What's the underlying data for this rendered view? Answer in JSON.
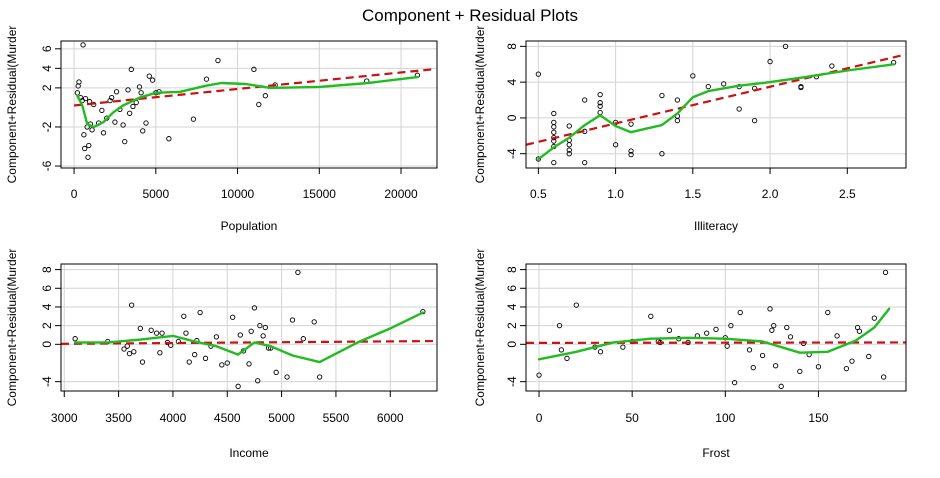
{
  "title": "Component + Residual Plots",
  "colors": {
    "points": "#000000",
    "dashed_line": "#cc1111",
    "smooth_line": "#22bb22",
    "grid": "#d3d3d3",
    "frame": "#000000"
  },
  "chart_data": [
    {
      "type": "scatter",
      "xlabel": "Population",
      "ylabel": "Component+Residual(Murder",
      "xlim": [
        -800,
        22200
      ],
      "ylim": [
        -6.2,
        6.8
      ],
      "xticks": [
        0,
        5000,
        10000,
        15000,
        20000
      ],
      "xtick_labels": [
        "0",
        "5000",
        "10000",
        "15000",
        "20000"
      ],
      "yticks": [
        -6,
        -2,
        2,
        4,
        6
      ],
      "ytick_labels": [
        "-6",
        "-2",
        "2",
        "4",
        "6"
      ],
      "points": [
        [
          200,
          1.5
        ],
        [
          250,
          2.2
        ],
        [
          300,
          2.6
        ],
        [
          400,
          1.0
        ],
        [
          500,
          0.7
        ],
        [
          550,
          6.4
        ],
        [
          600,
          -2.8
        ],
        [
          650,
          -4.2
        ],
        [
          700,
          0.9
        ],
        [
          800,
          -2.0
        ],
        [
          850,
          -5.1
        ],
        [
          900,
          -3.9
        ],
        [
          950,
          0.6
        ],
        [
          1000,
          -1.7
        ],
        [
          1100,
          -2.3
        ],
        [
          1200,
          0.3
        ],
        [
          1500,
          -1.6
        ],
        [
          1700,
          -0.3
        ],
        [
          1800,
          -2.6
        ],
        [
          2000,
          -1.1
        ],
        [
          2200,
          0.7
        ],
        [
          2300,
          1.0
        ],
        [
          2500,
          -1.5
        ],
        [
          2600,
          1.6
        ],
        [
          2800,
          -0.2
        ],
        [
          3000,
          -1.8
        ],
        [
          3100,
          -3.5
        ],
        [
          3300,
          1.8
        ],
        [
          3400,
          -0.6
        ],
        [
          3500,
          3.9
        ],
        [
          3600,
          0.1
        ],
        [
          3800,
          0.5
        ],
        [
          4000,
          2.1
        ],
        [
          4100,
          1.5
        ],
        [
          4200,
          -2.4
        ],
        [
          4400,
          -1.6
        ],
        [
          4600,
          3.2
        ],
        [
          4800,
          2.8
        ],
        [
          5000,
          1.5
        ],
        [
          5200,
          1.6
        ],
        [
          5800,
          -3.2
        ],
        [
          7300,
          -1.2
        ],
        [
          8100,
          2.9
        ],
        [
          8800,
          4.8
        ],
        [
          11000,
          3.9
        ],
        [
          11300,
          0.3
        ],
        [
          11700,
          1.2
        ],
        [
          12300,
          2.3
        ],
        [
          17900,
          2.7
        ],
        [
          21000,
          3.3
        ]
      ],
      "dashed_line": [
        [
          0,
          0.2
        ],
        [
          21900,
          3.9
        ]
      ],
      "smooth_line": [
        [
          200,
          1.2
        ],
        [
          500,
          0.2
        ],
        [
          800,
          -1.7
        ],
        [
          1200,
          -2.0
        ],
        [
          1800,
          -1.5
        ],
        [
          2400,
          -0.5
        ],
        [
          3000,
          0.2
        ],
        [
          4000,
          1.0
        ],
        [
          5000,
          1.5
        ],
        [
          6500,
          1.6
        ],
        [
          8000,
          2.2
        ],
        [
          9000,
          2.5
        ],
        [
          10500,
          2.4
        ],
        [
          12000,
          2.0
        ],
        [
          15000,
          2.1
        ],
        [
          18000,
          2.5
        ],
        [
          21000,
          3.1
        ]
      ]
    },
    {
      "type": "scatter",
      "xlabel": "Illiteracy",
      "ylabel": "Component+Residual(Murder",
      "xlim": [
        0.42,
        2.88
      ],
      "ylim": [
        -5.6,
        8.6
      ],
      "xticks": [
        0.5,
        1.0,
        1.5,
        2.0,
        2.5
      ],
      "xtick_labels": [
        "0.5",
        "1.0",
        "1.5",
        "2.0",
        "2.5"
      ],
      "yticks": [
        -4,
        0,
        4,
        8
      ],
      "ytick_labels": [
        "-4",
        "0",
        "4",
        "8"
      ],
      "points": [
        [
          0.5,
          4.9
        ],
        [
          0.5,
          -4.6
        ],
        [
          0.6,
          0.5
        ],
        [
          0.6,
          -0.5
        ],
        [
          0.6,
          -1.0
        ],
        [
          0.6,
          -1.6
        ],
        [
          0.6,
          -2.2
        ],
        [
          0.6,
          -2.6
        ],
        [
          0.6,
          -3.2
        ],
        [
          0.6,
          -5.0
        ],
        [
          0.7,
          -2.5
        ],
        [
          0.7,
          -3.0
        ],
        [
          0.7,
          -3.6
        ],
        [
          0.7,
          -4.0
        ],
        [
          0.7,
          -0.9
        ],
        [
          0.8,
          -1.5
        ],
        [
          0.8,
          -5.0
        ],
        [
          0.8,
          2.0
        ],
        [
          0.9,
          1.7
        ],
        [
          0.9,
          1.3
        ],
        [
          0.9,
          2.6
        ],
        [
          0.9,
          0.6
        ],
        [
          1.0,
          -0.5
        ],
        [
          1.0,
          -3.0
        ],
        [
          1.1,
          -0.7
        ],
        [
          1.1,
          -3.7
        ],
        [
          1.1,
          -4.1
        ],
        [
          1.3,
          2.5
        ],
        [
          1.3,
          -4.0
        ],
        [
          1.4,
          2.0
        ],
        [
          1.4,
          0.2
        ],
        [
          1.4,
          -0.3
        ],
        [
          1.5,
          4.7
        ],
        [
          1.6,
          3.5
        ],
        [
          1.7,
          3.8
        ],
        [
          1.8,
          1.0
        ],
        [
          1.8,
          3.5
        ],
        [
          1.9,
          -0.3
        ],
        [
          1.9,
          3.3
        ],
        [
          2.0,
          6.3
        ],
        [
          2.1,
          8.0
        ],
        [
          2.2,
          3.4
        ],
        [
          2.2,
          3.5
        ],
        [
          2.3,
          4.6
        ],
        [
          2.4,
          5.8
        ],
        [
          2.8,
          6.2
        ]
      ],
      "dashed_line": [
        [
          0.42,
          -3.0
        ],
        [
          2.88,
          7.1
        ]
      ],
      "smooth_line": [
        [
          0.5,
          -4.6
        ],
        [
          0.6,
          -3.3
        ],
        [
          0.7,
          -2.2
        ],
        [
          0.8,
          -0.8
        ],
        [
          0.9,
          0.3
        ],
        [
          1.0,
          -0.9
        ],
        [
          1.1,
          -1.6
        ],
        [
          1.2,
          -1.2
        ],
        [
          1.3,
          -0.8
        ],
        [
          1.4,
          0.5
        ],
        [
          1.5,
          2.3
        ],
        [
          1.6,
          3.0
        ],
        [
          1.8,
          3.6
        ],
        [
          2.0,
          4.0
        ],
        [
          2.2,
          4.5
        ],
        [
          2.5,
          5.3
        ],
        [
          2.8,
          6.0
        ]
      ]
    },
    {
      "type": "scatter",
      "xlabel": "Income",
      "ylabel": "Component+Residual(Murder",
      "xlim": [
        2970,
        6430
      ],
      "ylim": [
        -5.0,
        8.6
      ],
      "xticks": [
        3000,
        3500,
        4000,
        4500,
        5000,
        5500,
        6000
      ],
      "xtick_labels": [
        "3000",
        "3500",
        "4000",
        "4500",
        "5000",
        "5500",
        "6000"
      ],
      "yticks": [
        -4,
        0,
        2,
        4,
        6,
        8
      ],
      "ytick_labels": [
        "-4",
        "0",
        "2",
        "4",
        "6",
        "8"
      ],
      "points": [
        [
          3100,
          0.6
        ],
        [
          3400,
          0.3
        ],
        [
          3550,
          -0.5
        ],
        [
          3580,
          -0.2
        ],
        [
          3600,
          -1.0
        ],
        [
          3620,
          4.2
        ],
        [
          3640,
          -0.8
        ],
        [
          3700,
          1.7
        ],
        [
          3720,
          -1.9
        ],
        [
          3800,
          1.5
        ],
        [
          3850,
          1.2
        ],
        [
          3880,
          -0.9
        ],
        [
          3900,
          1.2
        ],
        [
          3950,
          0.2
        ],
        [
          3980,
          -0.1
        ],
        [
          4050,
          0.3
        ],
        [
          4100,
          3.0
        ],
        [
          4120,
          1.2
        ],
        [
          4150,
          -1.9
        ],
        [
          4200,
          -1.1
        ],
        [
          4220,
          0.4
        ],
        [
          4250,
          3.4
        ],
        [
          4300,
          -1.5
        ],
        [
          4350,
          -0.2
        ],
        [
          4400,
          0.8
        ],
        [
          4450,
          -2.2
        ],
        [
          4500,
          -2.0
        ],
        [
          4550,
          2.9
        ],
        [
          4600,
          -4.5
        ],
        [
          4620,
          1.0
        ],
        [
          4650,
          -0.7
        ],
        [
          4700,
          -2.1
        ],
        [
          4720,
          1.4
        ],
        [
          4750,
          3.9
        ],
        [
          4780,
          -3.9
        ],
        [
          4800,
          2.0
        ],
        [
          4830,
          0.9
        ],
        [
          4850,
          1.8
        ],
        [
          4880,
          -0.4
        ],
        [
          4900,
          -0.4
        ],
        [
          4950,
          -3.0
        ],
        [
          5050,
          -3.5
        ],
        [
          5100,
          2.6
        ],
        [
          5150,
          7.7
        ],
        [
          5200,
          0.6
        ],
        [
          5300,
          2.4
        ],
        [
          5350,
          -3.5
        ],
        [
          6300,
          3.5
        ]
      ],
      "dashed_line": [
        [
          2970,
          0.05
        ],
        [
          6430,
          0.35
        ]
      ],
      "smooth_line": [
        [
          3100,
          0.2
        ],
        [
          3400,
          0.2
        ],
        [
          3700,
          0.5
        ],
        [
          4000,
          0.9
        ],
        [
          4200,
          0.3
        ],
        [
          4400,
          -0.2
        ],
        [
          4600,
          -1.1
        ],
        [
          4750,
          0.2
        ],
        [
          4900,
          -0.2
        ],
        [
          5100,
          -1.2
        ],
        [
          5350,
          -1.9
        ],
        [
          5700,
          0.2
        ],
        [
          6000,
          1.7
        ],
        [
          6300,
          3.4
        ]
      ]
    },
    {
      "type": "scatter",
      "xlabel": "Frost",
      "ylabel": "Component+Residual(Murder",
      "xlim": [
        -7,
        197
      ],
      "ylim": [
        -5.0,
        8.6
      ],
      "xticks": [
        0,
        50,
        100,
        150
      ],
      "xtick_labels": [
        "0",
        "50",
        "100",
        "150"
      ],
      "yticks": [
        -4,
        0,
        2,
        4,
        6,
        8
      ],
      "ytick_labels": [
        "-4",
        "0",
        "2",
        "4",
        "6",
        "8"
      ],
      "points": [
        [
          0,
          -3.3
        ],
        [
          11,
          2.0
        ],
        [
          12,
          -0.6
        ],
        [
          15,
          -1.5
        ],
        [
          20,
          4.2
        ],
        [
          30,
          -0.3
        ],
        [
          33,
          -0.8
        ],
        [
          45,
          -0.3
        ],
        [
          50,
          0.3
        ],
        [
          60,
          3.0
        ],
        [
          64,
          0.3
        ],
        [
          65,
          0.2
        ],
        [
          70,
          1.5
        ],
        [
          75,
          0.6
        ],
        [
          80,
          0.2
        ],
        [
          85,
          0.9
        ],
        [
          90,
          1.2
        ],
        [
          95,
          1.6
        ],
        [
          100,
          0.7
        ],
        [
          101,
          -0.2
        ],
        [
          103,
          2.0
        ],
        [
          105,
          -4.1
        ],
        [
          108,
          3.4
        ],
        [
          113,
          -0.6
        ],
        [
          115,
          -2.5
        ],
        [
          120,
          -1.2
        ],
        [
          124,
          3.8
        ],
        [
          125,
          1.5
        ],
        [
          126,
          2.0
        ],
        [
          127,
          -2.3
        ],
        [
          130,
          -4.5
        ],
        [
          133,
          1.8
        ],
        [
          135,
          0.8
        ],
        [
          140,
          -2.9
        ],
        [
          142,
          0.1
        ],
        [
          145,
          -1.1
        ],
        [
          150,
          -2.4
        ],
        [
          155,
          3.4
        ],
        [
          160,
          0.9
        ],
        [
          165,
          -2.6
        ],
        [
          168,
          -1.8
        ],
        [
          171,
          1.8
        ],
        [
          172,
          1.4
        ],
        [
          177,
          -1.3
        ],
        [
          180,
          2.8
        ],
        [
          185,
          -3.5
        ],
        [
          186,
          7.7
        ]
      ],
      "dashed_line": [
        [
          -7,
          0.15
        ],
        [
          197,
          0.2
        ]
      ],
      "smooth_line": [
        [
          0,
          -1.6
        ],
        [
          20,
          -0.8
        ],
        [
          40,
          0.2
        ],
        [
          60,
          0.6
        ],
        [
          80,
          0.7
        ],
        [
          100,
          0.6
        ],
        [
          120,
          0.3
        ],
        [
          140,
          -0.9
        ],
        [
          155,
          -0.8
        ],
        [
          170,
          0.4
        ],
        [
          180,
          1.8
        ],
        [
          188,
          3.8
        ]
      ]
    }
  ]
}
